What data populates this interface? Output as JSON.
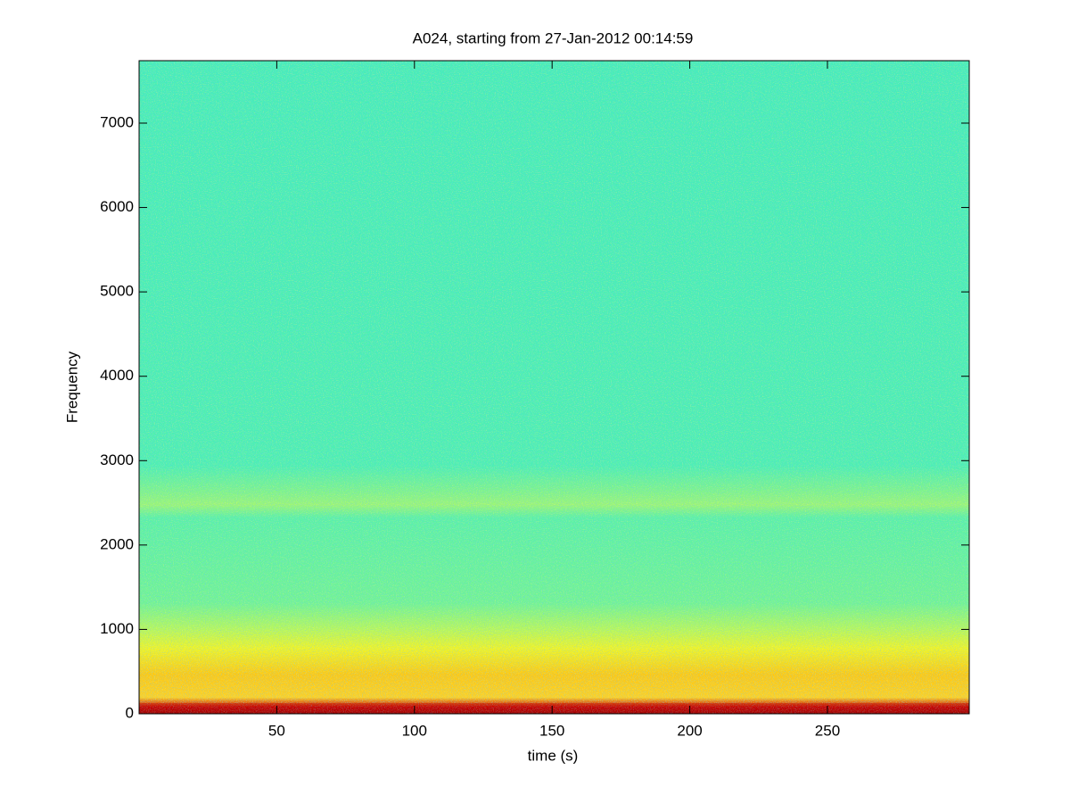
{
  "chart_data": {
    "type": "spectrogram",
    "title": "A024, starting from 27-Jan-2012 00:14:59",
    "xlabel": "time (s)",
    "ylabel": "Frequency",
    "xlim": [
      0,
      301.5
    ],
    "ylim": [
      0,
      7740
    ],
    "xticks": [
      50,
      100,
      150,
      200,
      250
    ],
    "yticks": [
      0,
      1000,
      2000,
      3000,
      4000,
      5000,
      6000,
      7000
    ]
  }
}
